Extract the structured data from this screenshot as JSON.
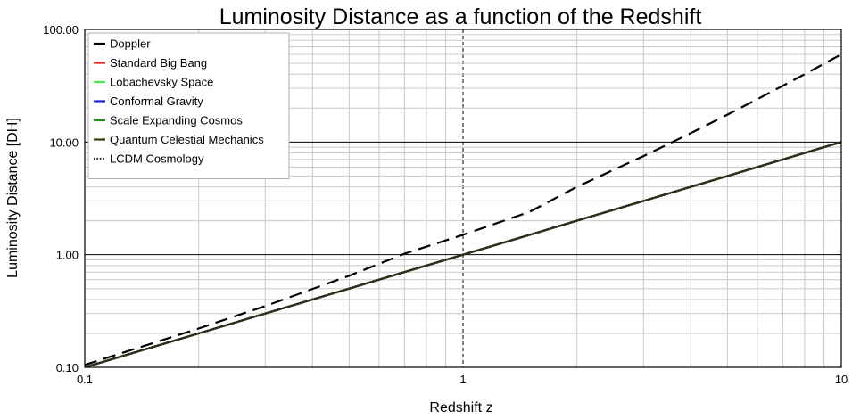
{
  "chart_data": {
    "type": "line",
    "title": "Luminosity Distance as a function of the Redshift",
    "xlabel": "Redshift  z",
    "ylabel": "Luminosity Distance [DH]",
    "x_scale": "log",
    "y_scale": "log",
    "xlim": [
      0.1,
      10
    ],
    "ylim": [
      0.1,
      100
    ],
    "x_ticks": [
      {
        "value": 0.1,
        "label": "0.1"
      },
      {
        "value": 1,
        "label": "1"
      },
      {
        "value": 10,
        "label": "10"
      }
    ],
    "y_ticks": [
      {
        "value": 0.1,
        "label": "0.10"
      },
      {
        "value": 1,
        "label": "1.00"
      },
      {
        "value": 10,
        "label": "10.00"
      },
      {
        "value": 100,
        "label": "100.00"
      }
    ],
    "grid": true,
    "legend_position": "top-left",
    "series": [
      {
        "name": "Doppler",
        "color": "#000000",
        "style": "dashed",
        "legend_style": "solid",
        "points": [
          [
            0.1,
            0.105
          ],
          [
            0.2,
            0.221
          ],
          [
            0.3,
            0.35
          ],
          [
            0.5,
            0.65
          ],
          [
            0.7,
            1.02
          ],
          [
            1,
            1.5
          ],
          [
            1.5,
            2.4
          ],
          [
            2,
            4.0
          ],
          [
            3,
            7.5
          ],
          [
            4,
            12
          ],
          [
            5,
            17.5
          ],
          [
            6,
            24
          ],
          [
            8,
            40
          ],
          [
            10,
            60
          ]
        ]
      },
      {
        "name": "Standard Big Bang",
        "color": "#ee2222",
        "style": "solid",
        "points": [
          [
            0.1,
            0.1
          ],
          [
            0.2,
            0.2
          ],
          [
            0.3,
            0.3
          ],
          [
            0.5,
            0.5
          ],
          [
            0.7,
            0.7
          ],
          [
            1,
            1
          ],
          [
            1.5,
            1.5
          ],
          [
            2,
            2
          ],
          [
            3,
            3
          ],
          [
            4,
            4
          ],
          [
            5,
            5
          ],
          [
            6,
            6
          ],
          [
            8,
            8
          ],
          [
            10,
            10
          ]
        ]
      },
      {
        "name": "Lobachevsky Space",
        "color": "#44ee44",
        "style": "solid",
        "points": [
          [
            0.1,
            0.1
          ],
          [
            0.2,
            0.2
          ],
          [
            0.3,
            0.3
          ],
          [
            0.5,
            0.5
          ],
          [
            0.7,
            0.7
          ],
          [
            1,
            1
          ],
          [
            1.5,
            1.5
          ],
          [
            2,
            2
          ],
          [
            3,
            3
          ],
          [
            4,
            4
          ],
          [
            5,
            5
          ],
          [
            6,
            6
          ],
          [
            8,
            8
          ],
          [
            10,
            10
          ]
        ]
      },
      {
        "name": "Conformal Gravity",
        "color": "#2222ee",
        "style": "solid",
        "points": [
          [
            0.1,
            0.1
          ],
          [
            0.2,
            0.2
          ],
          [
            0.3,
            0.3
          ],
          [
            0.5,
            0.5
          ],
          [
            0.7,
            0.7
          ],
          [
            1,
            1
          ],
          [
            1.5,
            1.5
          ],
          [
            2,
            2
          ],
          [
            3,
            3
          ],
          [
            4,
            4
          ],
          [
            5,
            5
          ],
          [
            6,
            6
          ],
          [
            8,
            8
          ],
          [
            10,
            10
          ]
        ]
      },
      {
        "name": "Scale Expanding Cosmos",
        "color": "#1e8c1e",
        "style": "solid",
        "points": [
          [
            0.1,
            0.1
          ],
          [
            0.2,
            0.2
          ],
          [
            0.3,
            0.3
          ],
          [
            0.5,
            0.5
          ],
          [
            0.7,
            0.7
          ],
          [
            1,
            1
          ],
          [
            1.5,
            1.5
          ],
          [
            2,
            2
          ],
          [
            3,
            3
          ],
          [
            4,
            4
          ],
          [
            5,
            5
          ],
          [
            6,
            6
          ],
          [
            8,
            8
          ],
          [
            10,
            10
          ]
        ]
      },
      {
        "name": "Quantum Celestial Mechanics",
        "color": "#333d14",
        "style": "solid",
        "points": [
          [
            0.1,
            0.1
          ],
          [
            0.2,
            0.2
          ],
          [
            0.3,
            0.3
          ],
          [
            0.5,
            0.5
          ],
          [
            0.7,
            0.7
          ],
          [
            1,
            1
          ],
          [
            1.5,
            1.5
          ],
          [
            2,
            2
          ],
          [
            3,
            3
          ],
          [
            4,
            4
          ],
          [
            5,
            5
          ],
          [
            6,
            6
          ],
          [
            8,
            8
          ],
          [
            10,
            10
          ]
        ]
      },
      {
        "name": "LCDM Cosmology",
        "color": "#222222",
        "style": "dotted",
        "points": [
          [
            0.1,
            0.1
          ],
          [
            0.2,
            0.2
          ],
          [
            0.3,
            0.3
          ],
          [
            0.5,
            0.5
          ],
          [
            0.7,
            0.7
          ],
          [
            1,
            1
          ],
          [
            1.5,
            1.5
          ],
          [
            2,
            2
          ],
          [
            3,
            3
          ],
          [
            4,
            4
          ],
          [
            5,
            5
          ],
          [
            6,
            6
          ],
          [
            8,
            8
          ],
          [
            10,
            10
          ]
        ]
      }
    ]
  }
}
